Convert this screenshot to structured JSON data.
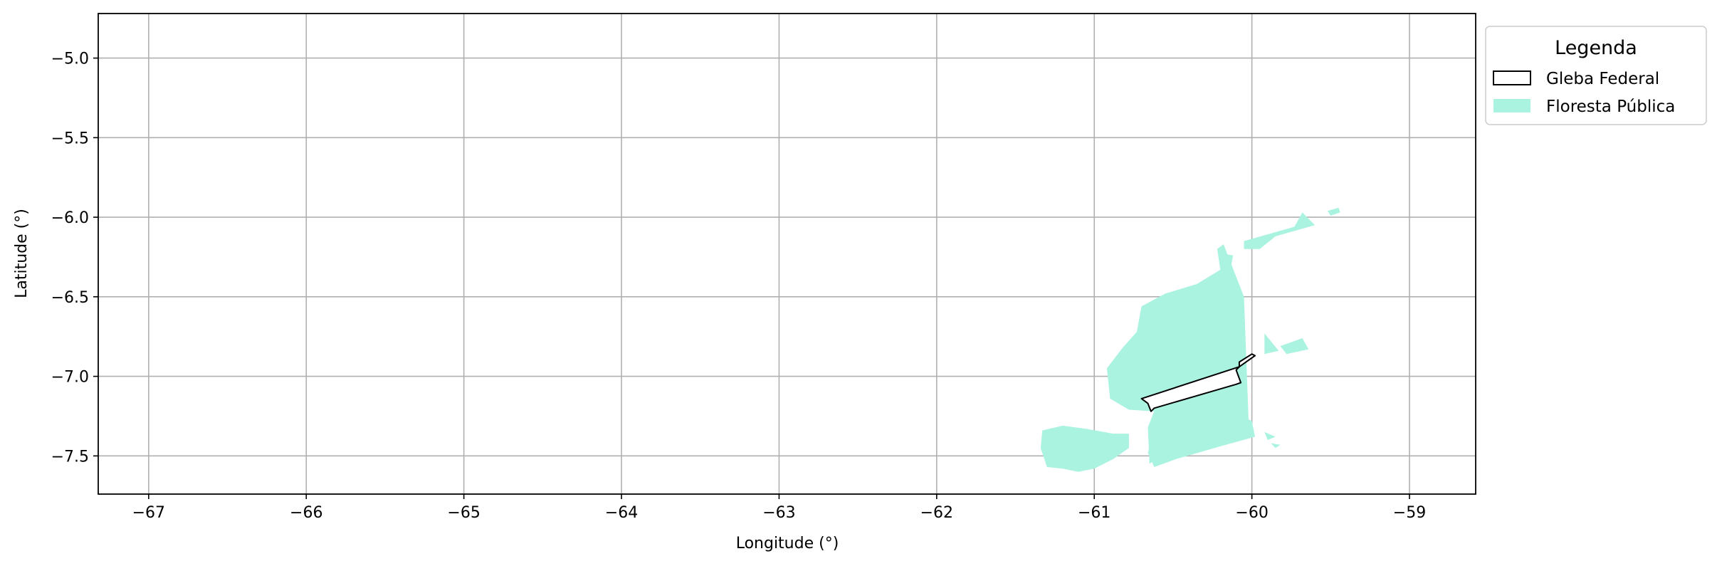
{
  "chart_data": {
    "type": "map",
    "xlabel": "Longitude (°)",
    "ylabel": "Latitude (°)",
    "xlim": [
      -67.32,
      -58.58
    ],
    "ylim": [
      -7.74,
      -4.72
    ],
    "xticks": [
      -67,
      -66,
      -65,
      -64,
      -63,
      -62,
      -61,
      -60,
      -59
    ],
    "yticks": [
      -5.0,
      -5.5,
      -6.0,
      -6.5,
      -7.0,
      -7.5
    ],
    "xtick_labels": [
      "−67",
      "−66",
      "−65",
      "−64",
      "−63",
      "−62",
      "−61",
      "−60",
      "−59"
    ],
    "ytick_labels": [
      "−5.0",
      "−5.5",
      "−6.0",
      "−6.5",
      "−7.0",
      "−7.5"
    ],
    "grid": true,
    "legend": {
      "title": "Legenda",
      "position": "outside-top-right",
      "items": [
        {
          "label": "Gleba Federal",
          "style": "outline",
          "color": "#000000"
        },
        {
          "label": "Floresta Pública",
          "style": "fill",
          "color": "#aaf3e0"
        }
      ]
    },
    "layers": [
      {
        "name": "Floresta Pública",
        "color": "#aaf3e0",
        "polygons": [
          [
            [
              -60.18,
              -6.17
            ],
            [
              -60.05,
              -6.5
            ],
            [
              -60.02,
              -7.3
            ],
            [
              -60.12,
              -7.38
            ],
            [
              -60.35,
              -7.43
            ],
            [
              -60.58,
              -7.5
            ],
            [
              -60.65,
              -7.55
            ],
            [
              -60.66,
              -7.32
            ],
            [
              -60.62,
              -7.22
            ],
            [
              -60.78,
              -7.21
            ],
            [
              -60.9,
              -7.14
            ],
            [
              -60.92,
              -6.95
            ],
            [
              -60.82,
              -6.82
            ],
            [
              -60.73,
              -6.72
            ],
            [
              -60.7,
              -6.56
            ],
            [
              -60.55,
              -6.48
            ],
            [
              -60.35,
              -6.42
            ],
            [
              -60.2,
              -6.33
            ],
            [
              -60.22,
              -6.2
            ]
          ],
          [
            [
              -60.05,
              -6.15
            ],
            [
              -59.73,
              -6.06
            ],
            [
              -59.68,
              -5.97
            ],
            [
              -59.6,
              -6.05
            ],
            [
              -59.85,
              -6.12
            ],
            [
              -59.95,
              -6.2
            ],
            [
              -60.05,
              -6.2
            ]
          ],
          [
            [
              -59.52,
              -5.96
            ],
            [
              -59.45,
              -5.94
            ],
            [
              -59.44,
              -5.97
            ],
            [
              -59.5,
              -5.99
            ]
          ],
          [
            [
              -60.18,
              -6.23
            ],
            [
              -60.12,
              -6.24
            ],
            [
              -60.13,
              -6.3
            ]
          ],
          [
            [
              -59.92,
              -6.73
            ],
            [
              -59.83,
              -6.84
            ],
            [
              -59.92,
              -6.86
            ]
          ],
          [
            [
              -59.82,
              -6.81
            ],
            [
              -59.68,
              -6.76
            ],
            [
              -59.64,
              -6.83
            ],
            [
              -59.78,
              -6.86
            ]
          ],
          [
            [
              -60.6,
              -7.28
            ],
            [
              -60.52,
              -7.22
            ],
            [
              -60.18,
              -7.2
            ],
            [
              -60.0,
              -7.28
            ],
            [
              -59.98,
              -7.38
            ],
            [
              -60.2,
              -7.44
            ],
            [
              -60.48,
              -7.52
            ],
            [
              -60.62,
              -7.57
            ],
            [
              -60.66,
              -7.48
            ]
          ],
          [
            [
              -61.33,
              -7.34
            ],
            [
              -61.2,
              -7.31
            ],
            [
              -61.05,
              -7.33
            ],
            [
              -60.88,
              -7.36
            ],
            [
              -60.78,
              -7.36
            ],
            [
              -60.78,
              -7.45
            ],
            [
              -60.88,
              -7.52
            ],
            [
              -61.0,
              -7.58
            ],
            [
              -61.1,
              -7.6
            ],
            [
              -61.2,
              -7.58
            ],
            [
              -61.3,
              -7.57
            ],
            [
              -61.34,
              -7.45
            ]
          ],
          [
            [
              -59.92,
              -7.35
            ],
            [
              -59.85,
              -7.38
            ],
            [
              -59.9,
              -7.4
            ]
          ],
          [
            [
              -59.88,
              -7.42
            ],
            [
              -59.82,
              -7.43
            ],
            [
              -59.85,
              -7.45
            ]
          ]
        ]
      },
      {
        "name": "Gleba Federal",
        "color": "#000000",
        "polygons": [
          [
            [
              -60.7,
              -7.14
            ],
            [
              -60.08,
              -6.94
            ],
            [
              -60.1,
              -6.96
            ],
            [
              -60.07,
              -7.04
            ],
            [
              -60.1,
              -7.05
            ],
            [
              -60.62,
              -7.2
            ],
            [
              -60.64,
              -7.22
            ],
            [
              -60.66,
              -7.17
            ]
          ],
          [
            [
              -60.0,
              -6.86
            ],
            [
              -59.98,
              -6.87
            ],
            [
              -60.08,
              -6.94
            ],
            [
              -60.08,
              -6.91
            ]
          ]
        ]
      }
    ]
  }
}
